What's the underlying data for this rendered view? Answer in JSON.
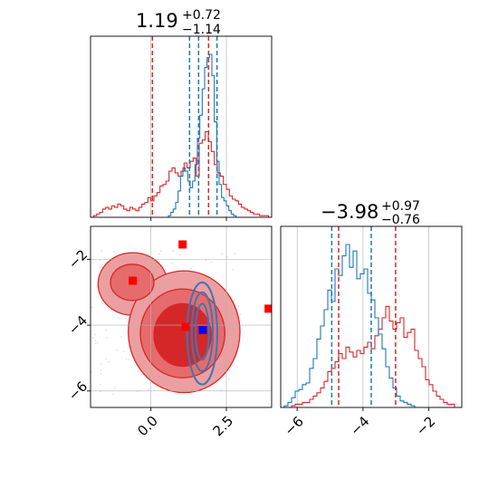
{
  "chart_data": [
    {
      "type": "histogram",
      "panel": "top-left marginal (parameter 1)",
      "title": {
        "value": "1.19",
        "plus": "+0.72",
        "minus": "−1.14"
      },
      "xlim": [
        -2.0,
        4.0
      ],
      "grid": true,
      "vlines": [
        {
          "x": 0.05,
          "color": "#d62728",
          "style": "dashed"
        },
        {
          "x": 1.91,
          "color": "#d62728",
          "style": "dashed"
        },
        {
          "x": 1.28,
          "color": "#1f77b4",
          "style": "dashed"
        },
        {
          "x": 1.58,
          "color": "#1f77b4",
          "style": "dashed"
        },
        {
          "x": 2.19,
          "color": "#1f77b4",
          "style": "dashed"
        }
      ],
      "series": [
        {
          "color": "#d62728",
          "x_range": [
            -2.0,
            4.0
          ],
          "values": [
            0.0,
            0.01,
            0.02,
            0.03,
            0.05,
            0.06,
            0.05,
            0.07,
            0.06,
            0.08,
            0.07,
            0.05,
            0.04,
            0.06,
            0.05,
            0.04,
            0.06,
            0.08,
            0.09,
            0.12,
            0.1,
            0.13,
            0.15,
            0.19,
            0.2,
            0.22,
            0.28,
            0.3,
            0.27,
            0.25,
            0.28,
            0.33,
            0.3,
            0.34,
            0.36,
            0.25,
            0.45,
            0.47,
            0.52,
            0.46,
            0.4,
            0.32,
            0.27,
            0.25,
            0.2,
            0.17,
            0.13,
            0.11,
            0.1,
            0.08,
            0.06,
            0.05,
            0.04,
            0.03,
            0.02,
            0.02,
            0.01,
            0.01,
            0.01,
            0.0
          ]
        },
        {
          "color": "#1f77b4",
          "x_range": [
            0.5,
            2.9
          ],
          "values": [
            0.0,
            0.01,
            0.03,
            0.05,
            0.09,
            0.16,
            0.25,
            0.3,
            0.28,
            0.22,
            0.18,
            0.22,
            0.32,
            0.48,
            0.62,
            0.78,
            0.91,
            0.97,
            0.99,
            0.86,
            0.58,
            0.34,
            0.2,
            0.12,
            0.1,
            0.07,
            0.04,
            0.02,
            0.01,
            0.0
          ]
        }
      ]
    },
    {
      "type": "contour",
      "panel": "bottom-left 2D (parameter 1 vs parameter 2)",
      "xlim": [
        -2.0,
        4.0
      ],
      "ylim": [
        -6.5,
        -1.0
      ],
      "x_ticks": [
        "0.0",
        "2.5"
      ],
      "y_ticks": [
        "−2",
        "−4",
        "−6"
      ],
      "grid": true,
      "red_levels": [
        {
          "fill": "#ec9fa0",
          "regions": [
            {
              "cx": -0.6,
              "cy": -2.75,
              "rx": 1.15,
              "ry": 0.95
            },
            {
              "cx": 1.1,
              "cy": -4.2,
              "rx": 1.85,
              "ry": 1.85
            }
          ]
        },
        {
          "fill": "#e66b6c",
          "regions": [
            {
              "cx": -0.62,
              "cy": -2.7,
              "rx": 0.72,
              "ry": 0.55
            },
            {
              "cx": 1.05,
              "cy": -4.25,
              "rx": 1.4,
              "ry": 1.35
            }
          ]
        },
        {
          "fill": "#d62728",
          "regions": [
            {
              "cx": 1.05,
              "cy": -4.3,
              "rx": 0.95,
              "ry": 0.95
            }
          ]
        }
      ],
      "blue_contours": [
        {
          "cx": 1.7,
          "cy": -4.25,
          "rx": 0.5,
          "ry": 1.55
        },
        {
          "cx": 1.7,
          "cy": -4.2,
          "rx": 0.35,
          "ry": 1.2
        },
        {
          "cx": 1.7,
          "cy": -4.2,
          "rx": 0.22,
          "ry": 0.85
        }
      ],
      "red_points": [
        {
          "x": 1.05,
          "y": -1.55
        },
        {
          "x": -0.6,
          "y": -2.65
        },
        {
          "x": 1.15,
          "y": -4.05
        },
        {
          "x": 3.9,
          "y": -3.5
        }
      ],
      "blue_points": [
        {
          "x": 1.72,
          "y": -4.15
        }
      ]
    },
    {
      "type": "histogram",
      "panel": "bottom-right marginal (parameter 2)",
      "title": {
        "value": "−3.98",
        "plus": "+0.97",
        "minus": "−0.76"
      },
      "xlim": [
        -6.5,
        -1.0
      ],
      "x_ticks": [
        "−6",
        "−4",
        "−2"
      ],
      "grid": true,
      "vlines": [
        {
          "x": -4.74,
          "color": "#d62728",
          "style": "dashed"
        },
        {
          "x": -3.01,
          "color": "#d62728",
          "style": "dashed"
        },
        {
          "x": -4.95,
          "color": "#1f77b4",
          "style": "dashed"
        },
        {
          "x": -3.75,
          "color": "#1f77b4",
          "style": "dashed"
        }
      ],
      "series": [
        {
          "color": "#d62728",
          "x_range": [
            -6.5,
            -1.0
          ],
          "values": [
            0.0,
            0.0,
            0.0,
            0.01,
            0.02,
            0.02,
            0.03,
            0.03,
            0.05,
            0.07,
            0.09,
            0.12,
            0.16,
            0.22,
            0.24,
            0.28,
            0.33,
            0.3,
            0.37,
            0.34,
            0.31,
            0.35,
            0.33,
            0.37,
            0.4,
            0.36,
            0.44,
            0.48,
            0.55,
            0.62,
            0.53,
            0.48,
            0.52,
            0.55,
            0.43,
            0.46,
            0.48,
            0.35,
            0.3,
            0.25,
            0.17,
            0.14,
            0.1,
            0.07,
            0.05,
            0.03,
            0.02,
            0.02,
            0.0,
            0.0
          ]
        },
        {
          "color": "#1f77b4",
          "x_range": [
            -6.5,
            -1.0
          ],
          "values": [
            0.0,
            0.01,
            0.03,
            0.06,
            0.1,
            0.11,
            0.14,
            0.15,
            0.24,
            0.3,
            0.42,
            0.5,
            0.6,
            0.72,
            0.65,
            0.85,
            0.81,
            0.93,
            1.0,
            0.86,
            0.96,
            0.79,
            0.82,
            0.85,
            0.7,
            0.66,
            0.55,
            0.45,
            0.36,
            0.25,
            0.18,
            0.12,
            0.07,
            0.04,
            0.03,
            0.02,
            0.01,
            0.0,
            0.0,
            0.0,
            0.0,
            0.0,
            0.0,
            0.0,
            0.0,
            0.0,
            0.0,
            0.0,
            0.0,
            0.0
          ]
        }
      ]
    }
  ]
}
